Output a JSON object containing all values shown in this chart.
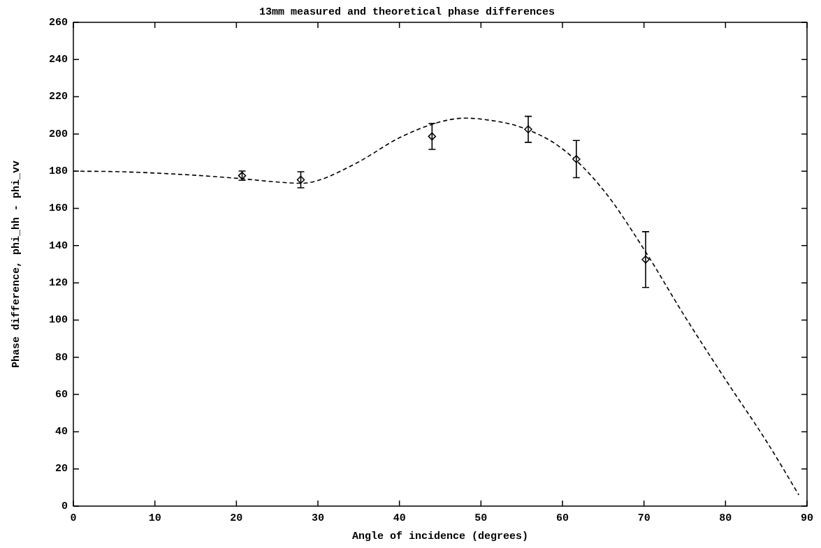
{
  "chart_data": {
    "type": "scatter",
    "title": "13mm measured and theoretical phase differences",
    "xlabel": "Angle of incidence (degrees)",
    "ylabel": "Phase difference, phi_hh - phi_vv",
    "xlim": [
      0,
      90
    ],
    "xticks": [
      0,
      10,
      20,
      30,
      40,
      50,
      60,
      70,
      80,
      90
    ],
    "ylim": [
      0,
      260
    ],
    "yticks": [
      0,
      20,
      40,
      60,
      80,
      100,
      120,
      140,
      160,
      180,
      200,
      220,
      240,
      260
    ],
    "grid": false,
    "legend": false,
    "series": [
      {
        "color": "#000000",
        "marker": "diamond",
        "x": [
          20.7,
          27.9,
          44.0,
          55.8,
          61.7,
          70.2
        ],
        "values": [
          177.6,
          175.4,
          198.7,
          202.5,
          186.5,
          132.5
        ],
        "errors": [
          2.5,
          4.3,
          7,
          7,
          10,
          15
        ]
      },
      {
        "type": "line",
        "color": "#000000",
        "marker": "none",
        "line_style": "dashed",
        "x": [
          0,
          5,
          10,
          15,
          20,
          25,
          28,
          30,
          35,
          40,
          45,
          48,
          50,
          55,
          60,
          65,
          70,
          75,
          80,
          85,
          89
        ],
        "values": [
          180,
          179.8,
          179,
          177.8,
          176.2,
          174.2,
          173.5,
          175,
          185,
          198,
          206.5,
          208.5,
          208,
          203.5,
          192,
          170,
          138,
          102,
          68,
          35,
          6
        ]
      }
    ]
  }
}
